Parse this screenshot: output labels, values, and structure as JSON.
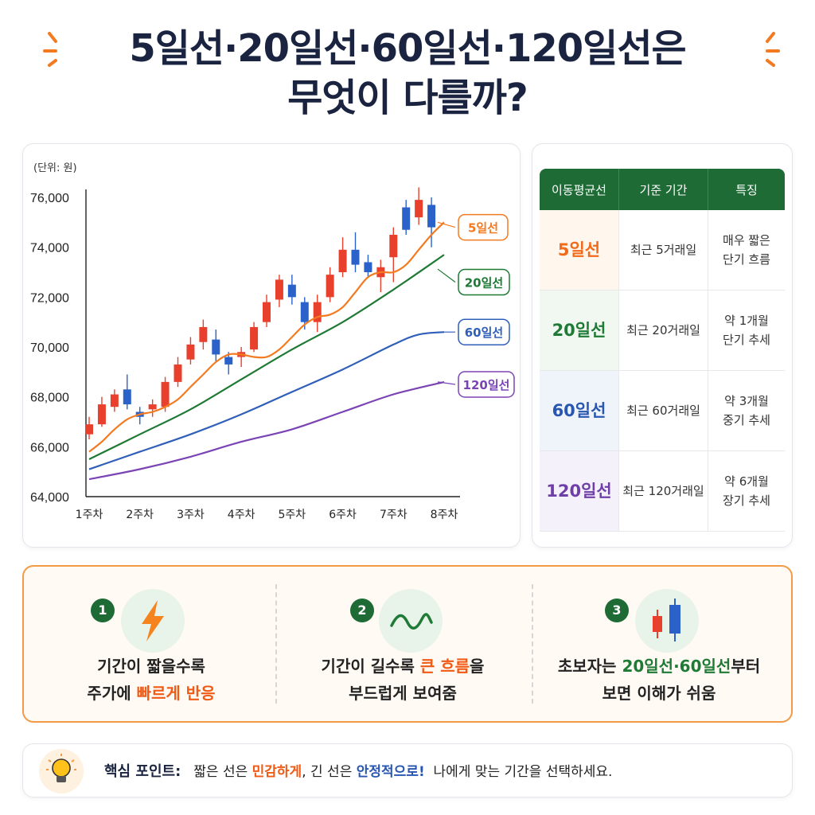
{
  "header": {
    "title_line1": "5일선·20일선·60일선·120일선은",
    "title_line2": "무엇이 다를까?"
  },
  "chart_data": {
    "type": "line",
    "unit_label": "(단위: 원)",
    "x_categories": [
      "1주차",
      "2주차",
      "3주차",
      "4주차",
      "5주차",
      "6주차",
      "7주차",
      "8주차"
    ],
    "y_ticks": [
      "64,000",
      "66,000",
      "68,000",
      "70,000",
      "72,000",
      "74,000",
      "76,000"
    ],
    "ylim": [
      64000,
      76000
    ],
    "series": [
      {
        "name": "5일선",
        "color": "#f47a20",
        "x": [
          0,
          0.25,
          0.5,
          0.75,
          1,
          1.25,
          1.5,
          1.75,
          2,
          2.25,
          2.5,
          2.75,
          3,
          3.25,
          3.5,
          3.75,
          4,
          4.25,
          4.5,
          4.75,
          5,
          5.25,
          5.5,
          5.75,
          6,
          6.25,
          6.5,
          6.75,
          7
        ],
        "values": [
          65800,
          66200,
          66700,
          67100,
          67300,
          67400,
          67600,
          67900,
          68400,
          68900,
          69400,
          69700,
          69700,
          69600,
          69600,
          69900,
          70400,
          70900,
          71200,
          71300,
          71600,
          72200,
          72800,
          73000,
          73000,
          73300,
          73900,
          74500,
          75000
        ]
      },
      {
        "name": "20일선",
        "color": "#1e7a34",
        "x": [
          0,
          1,
          2,
          3,
          4,
          5,
          6,
          7
        ],
        "values": [
          65500,
          66500,
          67500,
          68700,
          69900,
          71000,
          72300,
          73700
        ]
      },
      {
        "name": "60일선",
        "color": "#2f5fb8",
        "x": [
          0,
          1,
          2,
          3,
          4,
          5,
          6,
          6.5,
          7
        ],
        "values": [
          65100,
          65800,
          66500,
          67300,
          68200,
          69100,
          70100,
          70500,
          70600
        ]
      },
      {
        "name": "120일선",
        "color": "#7a44b5",
        "x": [
          0,
          1,
          2,
          3,
          4,
          5,
          6,
          7
        ],
        "values": [
          64700,
          65100,
          65600,
          66200,
          66700,
          67400,
          68100,
          68600
        ]
      }
    ],
    "candles": [
      {
        "x": 0.0,
        "o": 66500,
        "c": 66900,
        "h": 67200,
        "l": 66300,
        "up": true
      },
      {
        "x": 0.25,
        "o": 66900,
        "c": 67700,
        "h": 68000,
        "l": 66800,
        "up": true
      },
      {
        "x": 0.5,
        "o": 67600,
        "c": 68100,
        "h": 68300,
        "l": 67400,
        "up": true
      },
      {
        "x": 0.75,
        "o": 68300,
        "c": 67700,
        "h": 68900,
        "l": 67500,
        "up": false
      },
      {
        "x": 1.0,
        "o": 67400,
        "c": 67200,
        "h": 67600,
        "l": 66900,
        "up": false
      },
      {
        "x": 1.25,
        "o": 67500,
        "c": 67700,
        "h": 67900,
        "l": 67200,
        "up": true
      },
      {
        "x": 1.5,
        "o": 67600,
        "c": 68600,
        "h": 68800,
        "l": 67400,
        "up": true
      },
      {
        "x": 1.75,
        "o": 68600,
        "c": 69300,
        "h": 69600,
        "l": 68400,
        "up": true
      },
      {
        "x": 2.0,
        "o": 69500,
        "c": 70100,
        "h": 70400,
        "l": 69300,
        "up": true
      },
      {
        "x": 2.25,
        "o": 70200,
        "c": 70800,
        "h": 71100,
        "l": 69900,
        "up": true
      },
      {
        "x": 2.5,
        "o": 70300,
        "c": 69700,
        "h": 70700,
        "l": 69400,
        "up": false
      },
      {
        "x": 2.75,
        "o": 69600,
        "c": 69300,
        "h": 69800,
        "l": 68900,
        "up": false
      },
      {
        "x": 3.0,
        "o": 69600,
        "c": 69800,
        "h": 70000,
        "l": 69200,
        "up": true
      },
      {
        "x": 3.25,
        "o": 69900,
        "c": 70800,
        "h": 71000,
        "l": 69800,
        "up": true
      },
      {
        "x": 3.5,
        "o": 71000,
        "c": 71800,
        "h": 72100,
        "l": 70800,
        "up": true
      },
      {
        "x": 3.75,
        "o": 71900,
        "c": 72700,
        "h": 72900,
        "l": 71600,
        "up": true
      },
      {
        "x": 4.0,
        "o": 72500,
        "c": 72000,
        "h": 72900,
        "l": 71700,
        "up": false
      },
      {
        "x": 4.25,
        "o": 71800,
        "c": 71000,
        "h": 72000,
        "l": 70700,
        "up": false
      },
      {
        "x": 4.5,
        "o": 71000,
        "c": 71800,
        "h": 72100,
        "l": 70600,
        "up": true
      },
      {
        "x": 4.75,
        "o": 72000,
        "c": 72900,
        "h": 73200,
        "l": 71800,
        "up": true
      },
      {
        "x": 5.0,
        "o": 73000,
        "c": 73900,
        "h": 74400,
        "l": 72800,
        "up": true
      },
      {
        "x": 5.25,
        "o": 73900,
        "c": 73300,
        "h": 74600,
        "l": 73000,
        "up": false
      },
      {
        "x": 5.5,
        "o": 73400,
        "c": 73000,
        "h": 73700,
        "l": 72800,
        "up": false
      },
      {
        "x": 5.75,
        "o": 72800,
        "c": 73200,
        "h": 73500,
        "l": 72200,
        "up": true
      },
      {
        "x": 6.0,
        "o": 73600,
        "c": 74500,
        "h": 74800,
        "l": 72600,
        "up": true
      },
      {
        "x": 6.25,
        "o": 75600,
        "c": 74700,
        "h": 75900,
        "l": 74500,
        "up": false
      },
      {
        "x": 6.5,
        "o": 75200,
        "c": 75900,
        "h": 76400,
        "l": 74900,
        "up": true
      },
      {
        "x": 6.75,
        "o": 75700,
        "c": 74800,
        "h": 76000,
        "l": 74000,
        "up": false
      }
    ]
  },
  "table": {
    "headers": [
      "이동평균선",
      "기준 기간",
      "특징"
    ],
    "rows": [
      {
        "name": "5일선",
        "period": "최근 5거래일",
        "feature1": "매우 짧은",
        "feature2": "단기 흐름"
      },
      {
        "name": "20일선",
        "period": "최근 20거래일",
        "feature1": "약 1개월",
        "feature2": "단기 추세"
      },
      {
        "name": "60일선",
        "period": "최근 60거래일",
        "feature1": "약 3개월",
        "feature2": "중기 추세"
      },
      {
        "name": "120일선",
        "period": "최근 120거래일",
        "feature1": "약 6개월",
        "feature2": "장기 추세"
      }
    ]
  },
  "tips": [
    {
      "num": "1",
      "icon": "lightning-icon",
      "line1": "기간이 짧을수록",
      "line2_a": "주가에 ",
      "line2_b": "빠르게 반응"
    },
    {
      "num": "2",
      "icon": "wave-icon",
      "line1_a": "기간이 길수록 ",
      "line1_b": "큰 흐름",
      "line1_c": "을",
      "line2": "부드럽게 보여줌"
    },
    {
      "num": "3",
      "icon": "candlestick-icon",
      "line1_a": "초보자는 ",
      "line1_b": "20일선·60일선",
      "line1_c": "부터",
      "line2": "보면 이해가 쉬움"
    }
  ],
  "key_point": {
    "label": "핵심 포인트:",
    "t1": "짧은 선은 ",
    "t2": "민감하게",
    "t3": ", 긴 선은 ",
    "t4": "안정적으로!",
    "t5": "  나에게 맞는 기간을 선택하세요."
  },
  "colors": {
    "up": "#e8402c",
    "down": "#2a62c9",
    "accent": "#f39a47",
    "brand_green": "#1e6b35"
  }
}
